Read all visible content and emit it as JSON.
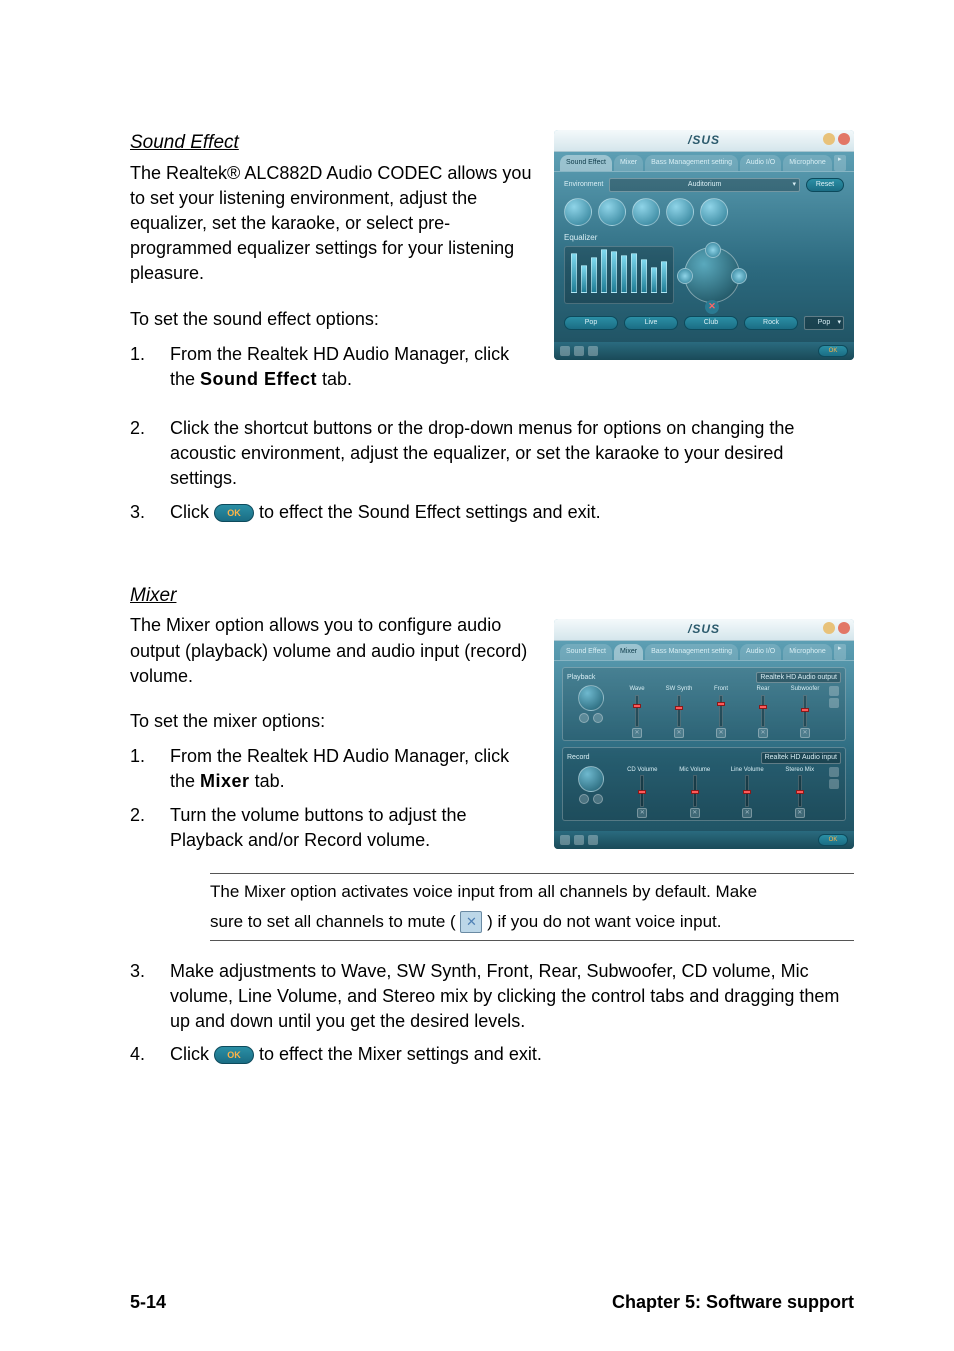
{
  "soundEffect": {
    "title": "Sound Effect",
    "intro": "The Realtek® ALC882D Audio CODEC allows you to set your listening environment, adjust the equalizer, set the karaoke, or select pre-programmed equalizer settings for your listening pleasure.",
    "lead": "To set the sound effect options:",
    "steps": {
      "s1a": "From the Realtek HD Audio Manager, click the ",
      "s1b": "Sound Effect",
      "s1c": " tab.",
      "s2": "Click the shortcut buttons or the drop-down menus for options on changing the acoustic environment, adjust the equalizer, or set the karaoke to your desired settings.",
      "s3a": "Click ",
      "s3b": " to effect the Sound Effect settings and exit."
    }
  },
  "mixer": {
    "title": "Mixer",
    "intro": "The Mixer option allows you to configure audio output (playback) volume and audio input (record) volume.",
    "lead": "To set the mixer options:",
    "steps": {
      "s1a": "From the Realtek HD Audio Manager, click the ",
      "s1b": "Mixer",
      "s1c": " tab.",
      "s2": "Turn the volume buttons to adjust the Playback and/or Record volume.",
      "s3": "Make adjustments to Wave, SW Synth, Front, Rear, Subwoofer,  CD volume, Mic volume, Line Volume, and Stereo mix by clicking the control tabs and dragging them up and down until you get the desired levels.",
      "s4a": "Click ",
      "s4b": " to effect the Mixer settings and exit."
    },
    "note": {
      "l1": "The Mixer option activates voice input from all channels by default. Make",
      "l2a": "sure to set all channels to mute ( ",
      "l2b": " ) if  you do not want voice input."
    }
  },
  "nums": {
    "n1": "1.",
    "n2": "2.",
    "n3": "3.",
    "n4": "4."
  },
  "ok": "OK",
  "mute": "✕",
  "footer": {
    "page": "5-14",
    "chapter": "Chapter 5: Software support"
  },
  "seShot": {
    "logo": "/SUS",
    "tabs": [
      "Sound Effect",
      "Mixer",
      "Bass Management setting",
      "Audio I/O",
      "Microphone"
    ],
    "envLabel": "Environment",
    "envValue": "Auditorium",
    "reset": "Reset",
    "eqLabel": "Equalizer",
    "presets": [
      "Pop",
      "Live",
      "Club",
      "Rock"
    ],
    "presetDD": "Pop",
    "eqHeights": [
      40,
      28,
      36,
      44,
      42,
      38,
      40,
      34,
      26,
      32
    ],
    "colors": {
      "min": "#e8c27a",
      "close": "#e27766"
    }
  },
  "mxShot": {
    "logo": "/SUS",
    "tabs": [
      "Sound Effect",
      "Mixer",
      "Bass Management setting",
      "Audio I/O",
      "Microphone"
    ],
    "playback": {
      "title": "Playback",
      "device": "Realtek HD Audio output",
      "channels": [
        "Wave",
        "SW Synth",
        "Front",
        "Rear",
        "Subwoofer"
      ],
      "positions": [
        8,
        10,
        6,
        9,
        12
      ]
    },
    "record": {
      "title": "Record",
      "device": "Realtek HD Audio input",
      "channels": [
        "CD Volume",
        "Mic Volume",
        "Line Volume",
        "Stereo Mix"
      ],
      "positions": [
        14,
        14,
        14,
        14
      ]
    }
  }
}
